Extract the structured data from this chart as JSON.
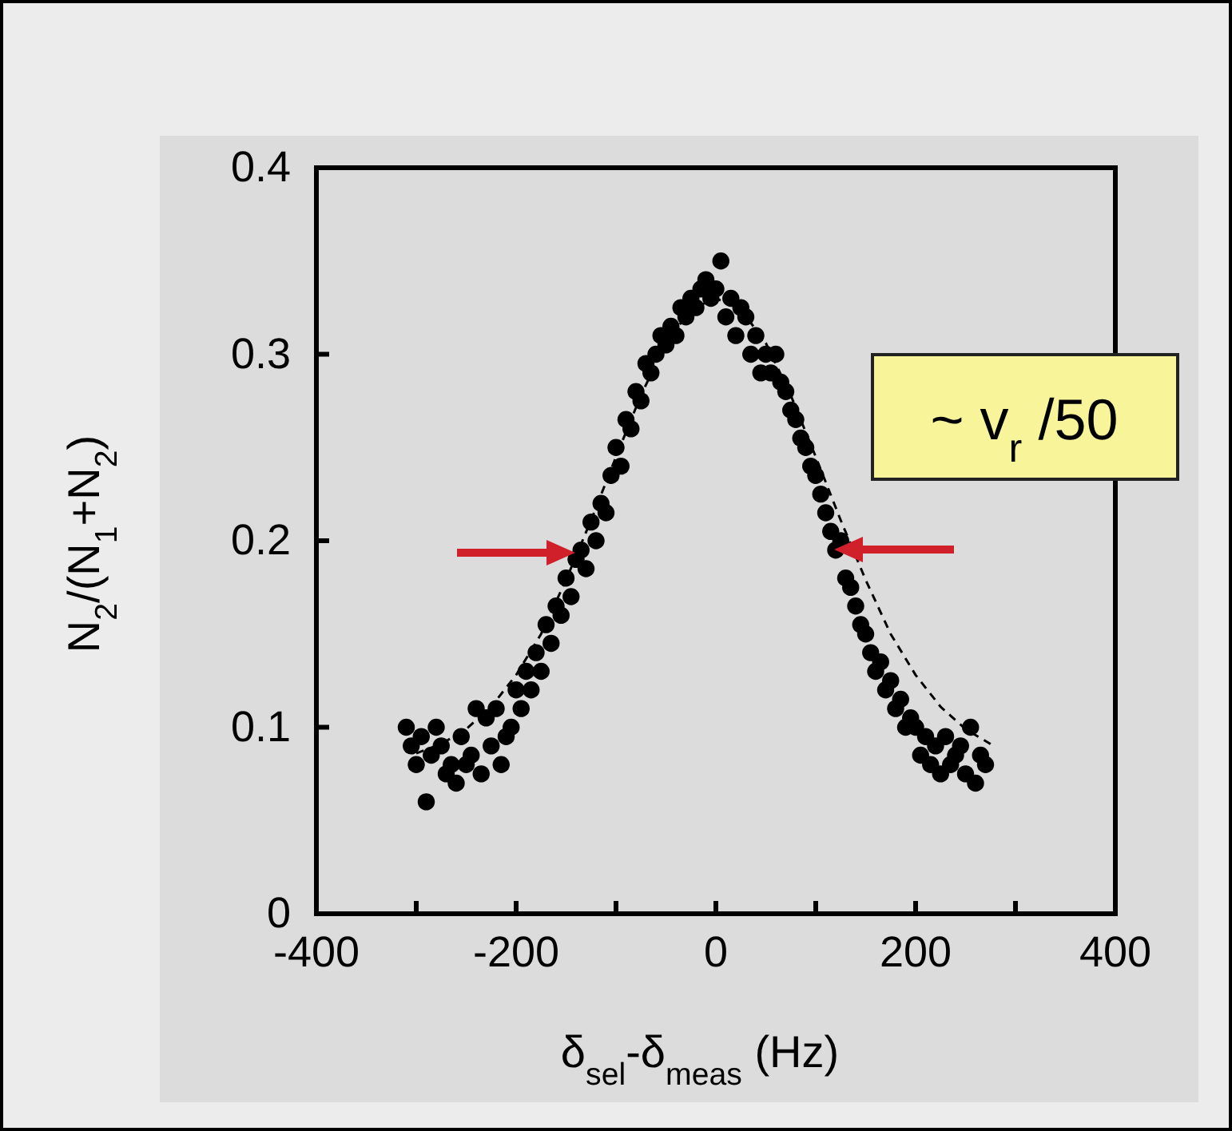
{
  "chart_data": {
    "type": "scatter",
    "xlabel": "δ$_{sel}$-δ$_{meas}$ (Hz)",
    "ylabel": "N$_{2}$/(N$_{1}$+N$_{2}$)",
    "xlim": [
      -400,
      400
    ],
    "xticks": [
      -400,
      {
        "value": -300,
        "label": null
      },
      -200,
      {
        "value": -100,
        "label": null
      },
      0,
      {
        "value": 100,
        "label": null
      },
      200,
      {
        "value": 300,
        "label": null
      },
      400
    ],
    "ylim": [
      0,
      0.4
    ],
    "yticks": [
      0,
      0.1,
      0.2,
      0.3,
      0.4
    ],
    "grid": false,
    "legend": false,
    "annotations": [
      "~ v$_{r}$ /50"
    ],
    "series": [
      {
        "color": "#000000",
        "marker": "circle",
        "x": [
          -310,
          -305,
          -300,
          -295,
          -290,
          -285,
          -280,
          -275,
          -270,
          -265,
          -260,
          -255,
          -250,
          -245,
          -240,
          -235,
          -230,
          -225,
          -220,
          -215,
          -210,
          -205,
          -200,
          -195,
          -190,
          -185,
          -180,
          -175,
          -170,
          -165,
          -160,
          -155,
          -150,
          -145,
          -140,
          -135,
          -130,
          -125,
          -120,
          -115,
          -110,
          -105,
          -100,
          -95,
          -90,
          -85,
          -80,
          -75,
          -70,
          -65,
          -60,
          -55,
          -50,
          -45,
          -40,
          -35,
          -30,
          -25,
          -20,
          -15,
          -10,
          -5,
          0,
          5,
          10,
          15,
          20,
          25,
          30,
          35,
          40,
          45,
          50,
          55,
          60,
          65,
          70,
          75,
          80,
          85,
          90,
          95,
          100,
          105,
          110,
          115,
          120,
          125,
          130,
          135,
          140,
          145,
          150,
          155,
          160,
          165,
          170,
          175,
          180,
          185,
          190,
          195,
          200,
          205,
          210,
          215,
          220,
          225,
          230,
          235,
          240,
          245,
          250,
          255,
          260,
          265,
          270
        ],
        "values": [
          0.1,
          0.09,
          0.08,
          0.095,
          0.06,
          0.085,
          0.1,
          0.09,
          0.075,
          0.08,
          0.07,
          0.095,
          0.08,
          0.085,
          0.11,
          0.075,
          0.105,
          0.09,
          0.11,
          0.08,
          0.095,
          0.1,
          0.12,
          0.11,
          0.13,
          0.12,
          0.14,
          0.13,
          0.155,
          0.145,
          0.165,
          0.16,
          0.18,
          0.17,
          0.19,
          0.195,
          0.185,
          0.21,
          0.2,
          0.22,
          0.215,
          0.235,
          0.25,
          0.24,
          0.265,
          0.26,
          0.28,
          0.275,
          0.295,
          0.29,
          0.3,
          0.31,
          0.305,
          0.315,
          0.31,
          0.325,
          0.32,
          0.33,
          0.325,
          0.335,
          0.34,
          0.33,
          0.335,
          0.35,
          0.32,
          0.33,
          0.31,
          0.325,
          0.32,
          0.3,
          0.31,
          0.29,
          0.3,
          0.29,
          0.3,
          0.285,
          0.28,
          0.27,
          0.265,
          0.255,
          0.25,
          0.24,
          0.235,
          0.225,
          0.215,
          0.205,
          0.195,
          0.2,
          0.18,
          0.175,
          0.165,
          0.155,
          0.15,
          0.14,
          0.13,
          0.135,
          0.12,
          0.125,
          0.11,
          0.115,
          0.1,
          0.105,
          0.1,
          0.085,
          0.095,
          0.08,
          0.09,
          0.075,
          0.095,
          0.08,
          0.085,
          0.09,
          0.075,
          0.1,
          0.07,
          0.085,
          0.08
        ]
      },
      {
        "type": "line",
        "color": "#000000",
        "marker": "none",
        "line_style": "dashed",
        "x": [
          -300,
          -275,
          -250,
          -225,
          -200,
          -175,
          -150,
          -125,
          -100,
          -75,
          -50,
          -25,
          0,
          25,
          50,
          75,
          100,
          125,
          150,
          175,
          200,
          225,
          250,
          275
        ],
        "values": [
          0.086,
          0.091,
          0.099,
          0.111,
          0.128,
          0.15,
          0.179,
          0.211,
          0.245,
          0.278,
          0.306,
          0.324,
          0.33,
          0.324,
          0.306,
          0.278,
          0.245,
          0.211,
          0.179,
          0.15,
          0.128,
          0.111,
          0.099,
          0.091
        ]
      }
    ]
  }
}
